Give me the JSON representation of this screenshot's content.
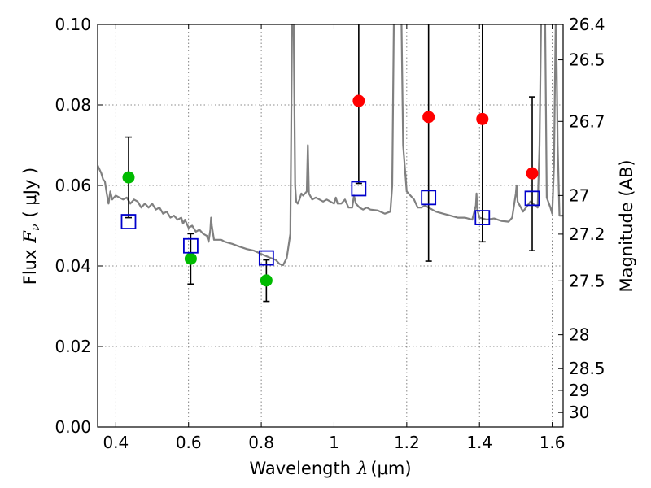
{
  "chart_data": {
    "type": "scatter",
    "x_axis": {
      "label_prefix": "Wavelength",
      "label_symbol": "λ",
      "label_unit": "(μm)",
      "range": [
        0.35,
        1.63
      ],
      "ticks": [
        0.4,
        0.6,
        0.8,
        1.0,
        1.2,
        1.4,
        1.6
      ],
      "tick_labels": [
        "0.4",
        "0.6",
        "0.8",
        "1",
        "1.2",
        "1.4",
        "1.6"
      ]
    },
    "y_axis": {
      "label_prefix": "Flux",
      "label_symbol": "F",
      "label_subscript": "ν",
      "label_unit": "( μJy )",
      "range": [
        0.0,
        0.1
      ],
      "ticks": [
        0.0,
        0.02,
        0.04,
        0.06,
        0.08,
        0.1
      ],
      "tick_labels": [
        "0.00",
        "0.02",
        "0.04",
        "0.06",
        "0.08",
        "0.10"
      ]
    },
    "y2_axis": {
      "label": "Magnitude (AB)",
      "tick_labels": [
        "26.4",
        "26.5",
        "26.7",
        "27",
        "27.2",
        "27.5",
        "28",
        "28.5",
        "29",
        "30"
      ],
      "tick_values_flux": [
        0.1,
        0.0912,
        0.0759,
        0.0575,
        0.0479,
        0.0363,
        0.0229,
        0.0145,
        0.0091,
        0.0036
      ]
    },
    "grid": true,
    "series": [
      {
        "marker": "circle",
        "color": "#00bb00",
        "points": [
          {
            "x": 0.435,
            "y": 0.062,
            "err": [
              0.052,
              0.072
            ]
          },
          {
            "x": 0.606,
            "y": 0.0418,
            "err": [
              0.0355,
              0.048
            ]
          },
          {
            "x": 0.814,
            "y": 0.0364,
            "err": [
              0.0312,
              0.0415
            ]
          }
        ]
      },
      {
        "marker": "circle",
        "color": "#ff0000",
        "points": [
          {
            "x": 1.068,
            "y": 0.081,
            "err": [
              0.0605,
              0.1
            ]
          },
          {
            "x": 1.26,
            "y": 0.077,
            "err": [
              0.0412,
              0.1
            ]
          },
          {
            "x": 1.408,
            "y": 0.0765,
            "err": [
              0.046,
              0.1
            ]
          },
          {
            "x": 1.545,
            "y": 0.063,
            "err": [
              0.0438,
              0.082
            ]
          }
        ]
      },
      {
        "marker": "square-open",
        "color": "#0000cc",
        "points": [
          {
            "x": 0.435,
            "y": 0.051
          },
          {
            "x": 0.606,
            "y": 0.045
          },
          {
            "x": 0.814,
            "y": 0.042
          },
          {
            "x": 1.068,
            "y": 0.0592
          },
          {
            "x": 1.26,
            "y": 0.057
          },
          {
            "x": 1.408,
            "y": 0.052
          },
          {
            "x": 1.545,
            "y": 0.0568
          }
        ]
      }
    ],
    "template_spectrum": {
      "color": "#808080",
      "points": [
        [
          0.35,
          0.065
        ],
        [
          0.36,
          0.063
        ],
        [
          0.365,
          0.0615
        ],
        [
          0.37,
          0.061
        ],
        [
          0.375,
          0.058
        ],
        [
          0.38,
          0.0555
        ],
        [
          0.385,
          0.0585
        ],
        [
          0.39,
          0.0565
        ],
        [
          0.4,
          0.0575
        ],
        [
          0.41,
          0.057
        ],
        [
          0.42,
          0.0565
        ],
        [
          0.43,
          0.057
        ],
        [
          0.44,
          0.0555
        ],
        [
          0.45,
          0.0565
        ],
        [
          0.46,
          0.056
        ],
        [
          0.47,
          0.0545
        ],
        [
          0.48,
          0.0555
        ],
        [
          0.49,
          0.0545
        ],
        [
          0.5,
          0.0555
        ],
        [
          0.51,
          0.054
        ],
        [
          0.52,
          0.0545
        ],
        [
          0.53,
          0.053
        ],
        [
          0.54,
          0.0535
        ],
        [
          0.55,
          0.052
        ],
        [
          0.56,
          0.0525
        ],
        [
          0.57,
          0.0515
        ],
        [
          0.58,
          0.052
        ],
        [
          0.585,
          0.0505
        ],
        [
          0.59,
          0.0515
        ],
        [
          0.6,
          0.0495
        ],
        [
          0.61,
          0.05
        ],
        [
          0.62,
          0.0485
        ],
        [
          0.63,
          0.049
        ],
        [
          0.64,
          0.048
        ],
        [
          0.65,
          0.0475
        ],
        [
          0.655,
          0.046
        ],
        [
          0.66,
          0.049
        ],
        [
          0.662,
          0.052
        ],
        [
          0.664,
          0.05
        ],
        [
          0.67,
          0.0465
        ],
        [
          0.69,
          0.0465
        ],
        [
          0.7,
          0.046
        ],
        [
          0.72,
          0.0455
        ],
        [
          0.74,
          0.0448
        ],
        [
          0.76,
          0.0442
        ],
        [
          0.78,
          0.0438
        ],
        [
          0.8,
          0.043
        ],
        [
          0.82,
          0.0422
        ],
        [
          0.84,
          0.0415
        ],
        [
          0.85,
          0.0405
        ],
        [
          0.86,
          0.0402
        ],
        [
          0.87,
          0.042
        ],
        [
          0.88,
          0.048
        ],
        [
          0.885,
          0.105
        ],
        [
          0.889,
          0.1
        ],
        [
          0.893,
          0.06
        ],
        [
          0.896,
          0.056
        ],
        [
          0.9,
          0.0555
        ],
        [
          0.905,
          0.0565
        ],
        [
          0.91,
          0.058
        ],
        [
          0.915,
          0.0575
        ],
        [
          0.925,
          0.0585
        ],
        [
          0.928,
          0.07
        ],
        [
          0.931,
          0.058
        ],
        [
          0.94,
          0.0565
        ],
        [
          0.95,
          0.057
        ],
        [
          0.96,
          0.0565
        ],
        [
          0.97,
          0.056
        ],
        [
          0.98,
          0.0565
        ],
        [
          0.99,
          0.056
        ],
        [
          1.0,
          0.0555
        ],
        [
          1.005,
          0.057
        ],
        [
          1.01,
          0.0555
        ],
        [
          1.02,
          0.0555
        ],
        [
          1.03,
          0.0565
        ],
        [
          1.035,
          0.0555
        ],
        [
          1.04,
          0.0545
        ],
        [
          1.05,
          0.0545
        ],
        [
          1.055,
          0.0575
        ],
        [
          1.06,
          0.0555
        ],
        [
          1.07,
          0.0545
        ],
        [
          1.08,
          0.054
        ],
        [
          1.09,
          0.0545
        ],
        [
          1.1,
          0.054
        ],
        [
          1.12,
          0.0538
        ],
        [
          1.14,
          0.053
        ],
        [
          1.155,
          0.0535
        ],
        [
          1.16,
          0.06
        ],
        [
          1.165,
          0.105
        ],
        [
          1.185,
          0.105
        ],
        [
          1.19,
          0.07
        ],
        [
          1.2,
          0.0585
        ],
        [
          1.21,
          0.0575
        ],
        [
          1.22,
          0.0565
        ],
        [
          1.23,
          0.0545
        ],
        [
          1.24,
          0.0545
        ],
        [
          1.25,
          0.055
        ],
        [
          1.26,
          0.0545
        ],
        [
          1.27,
          0.054
        ],
        [
          1.28,
          0.0535
        ],
        [
          1.3,
          0.053
        ],
        [
          1.32,
          0.0525
        ],
        [
          1.34,
          0.052
        ],
        [
          1.36,
          0.052
        ],
        [
          1.38,
          0.0515
        ],
        [
          1.39,
          0.055
        ],
        [
          1.392,
          0.058
        ],
        [
          1.394,
          0.054
        ],
        [
          1.4,
          0.052
        ],
        [
          1.42,
          0.0515
        ],
        [
          1.44,
          0.0518
        ],
        [
          1.46,
          0.0512
        ],
        [
          1.48,
          0.051
        ],
        [
          1.49,
          0.052
        ],
        [
          1.5,
          0.058
        ],
        [
          1.502,
          0.06
        ],
        [
          1.505,
          0.056
        ],
        [
          1.52,
          0.0535
        ],
        [
          1.54,
          0.056
        ],
        [
          1.56,
          0.0545
        ],
        [
          1.565,
          0.07
        ],
        [
          1.57,
          0.105
        ],
        [
          1.58,
          0.105
        ],
        [
          1.585,
          0.057
        ],
        [
          1.595,
          0.0545
        ],
        [
          1.6,
          0.053
        ],
        [
          1.605,
          0.065
        ],
        [
          1.61,
          0.105
        ],
        [
          1.615,
          0.07
        ],
        [
          1.62,
          0.0525
        ],
        [
          1.63,
          0.0525
        ]
      ]
    }
  }
}
